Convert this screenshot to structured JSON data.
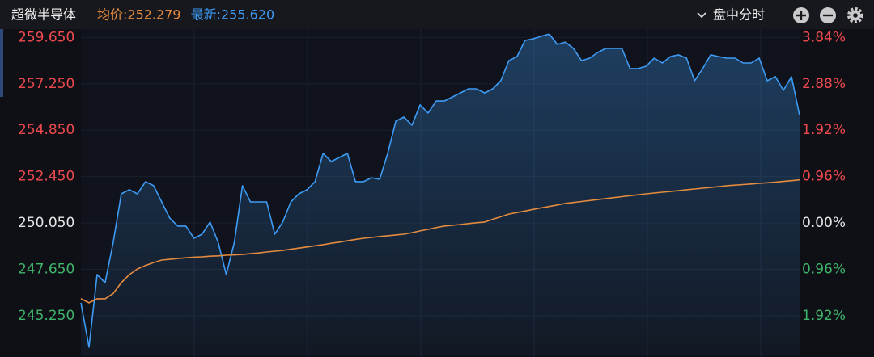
{
  "chart_data": {
    "type": "line",
    "title": "超微半导体",
    "view_menu": "盘中分时",
    "series": [
      {
        "name": "均价:252.279",
        "color": "#e38b3f",
        "fill": false,
        "values": [
          246.13,
          245.92,
          246.13,
          246.13,
          246.4,
          246.96,
          247.38,
          247.67,
          247.85,
          248.0,
          248.13,
          248.17,
          248.21,
          248.25,
          248.28,
          248.3,
          248.33,
          248.35,
          248.38,
          248.4,
          248.42,
          248.46,
          248.5,
          248.55,
          248.59,
          248.63,
          248.69,
          248.75,
          248.81,
          248.87,
          248.93,
          249.0,
          249.06,
          249.13,
          249.2,
          249.26,
          249.3,
          249.35,
          249.39,
          249.43,
          249.47,
          249.55,
          249.64,
          249.72,
          249.81,
          249.89,
          249.93,
          249.97,
          250.02,
          250.06,
          250.1,
          250.24,
          250.37,
          250.51,
          250.59,
          250.67,
          250.75,
          250.83,
          250.9,
          250.98,
          251.06,
          251.11,
          251.16,
          251.21,
          251.26,
          251.31,
          251.36,
          251.41,
          251.46,
          251.51,
          251.56,
          251.6,
          251.64,
          251.68,
          251.72,
          251.77,
          251.81,
          251.85,
          251.89,
          251.93,
          251.98,
          252.01,
          252.04,
          252.07,
          252.1,
          252.13,
          252.16,
          252.2,
          252.24,
          252.28
        ]
      },
      {
        "name": "最新:255.620",
        "color": "#3d9bf5",
        "fill": true,
        "values": [
          245.92,
          243.62,
          247.38,
          246.96,
          249.05,
          251.56,
          251.77,
          251.56,
          252.19,
          251.98,
          251.14,
          250.3,
          249.89,
          249.89,
          249.26,
          249.47,
          250.1,
          249.05,
          247.38,
          249.05,
          251.98,
          251.14,
          251.14,
          251.14,
          249.47,
          250.1,
          251.14,
          251.56,
          251.77,
          252.19,
          253.65,
          253.23,
          253.44,
          253.65,
          252.19,
          252.19,
          252.39,
          252.31,
          253.65,
          255.32,
          255.53,
          255.11,
          256.16,
          255.74,
          256.36,
          256.36,
          256.57,
          256.78,
          256.99,
          256.99,
          256.78,
          256.99,
          257.41,
          258.45,
          258.66,
          259.5,
          259.58,
          259.71,
          259.83,
          259.29,
          259.41,
          259.08,
          258.45,
          258.58,
          258.87,
          259.08,
          259.08,
          259.08,
          258.04,
          258.04,
          258.16,
          258.58,
          258.33,
          258.66,
          258.75,
          258.58,
          257.41,
          258.04,
          258.75,
          258.66,
          258.58,
          258.58,
          258.33,
          258.33,
          258.58,
          257.41,
          257.62,
          256.91,
          257.62,
          255.62
        ]
      }
    ],
    "ylim": [
      243.2,
      260.0
    ],
    "yticks": [
      {
        "value": 259.65,
        "label": "259.650"
      },
      {
        "value": 257.25,
        "label": "257.250"
      },
      {
        "value": 254.85,
        "label": "254.850"
      },
      {
        "value": 252.45,
        "label": "252.450"
      },
      {
        "value": 250.05,
        "label": "250.050"
      },
      {
        "value": 247.65,
        "label": "247.650"
      },
      {
        "value": 245.25,
        "label": "245.250"
      }
    ],
    "y2lim": [
      -2.74,
      3.98
    ],
    "y2ticks": [
      {
        "value": 3.84,
        "label": "3.84%"
      },
      {
        "value": 2.88,
        "label": "2.88%"
      },
      {
        "value": 1.92,
        "label": "1.92%"
      },
      {
        "value": 0.96,
        "label": "0.96%"
      },
      {
        "value": 0,
        "label": "0.00%"
      },
      {
        "value": -0.96,
        "label": "0.96%"
      },
      {
        "value": -1.92,
        "label": "1.92%"
      }
    ],
    "up_color": "#ef4a4f",
    "flat_color": "#e6e6e6",
    "down_color": "#3fb56b",
    "grid": true
  }
}
